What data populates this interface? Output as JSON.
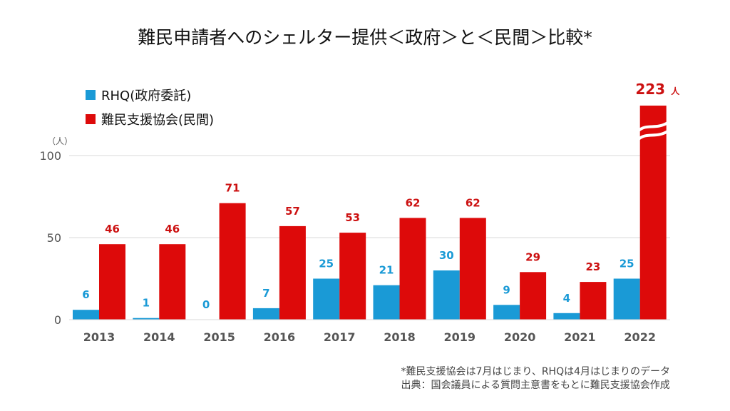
{
  "chart_data": {
    "type": "bar",
    "title": "難民申請者へのシェルター提供＜政府＞と＜民間＞比較*",
    "xlabel": "",
    "ylabel": "（人）",
    "ylim": [
      0,
      100
    ],
    "yticks": [
      0,
      50,
      100
    ],
    "grid": true,
    "legend_position": "top-left",
    "categories": [
      "2013",
      "2014",
      "2015",
      "2016",
      "2017",
      "2018",
      "2019",
      "2020",
      "2021",
      "2022"
    ],
    "series": [
      {
        "name": "RHQ(政府委託)",
        "color": "#1a9ad6",
        "values": [
          6,
          1,
          0,
          7,
          25,
          21,
          30,
          9,
          4,
          25
        ]
      },
      {
        "name": "難民支援協会(民間)",
        "color": "#dd0a0a",
        "values": [
          46,
          46,
          71,
          57,
          53,
          62,
          62,
          29,
          23,
          223
        ]
      }
    ],
    "annotations": {
      "broken_bar": {
        "category": "2022",
        "series": "難民支援協会(民間)",
        "label": "223",
        "unit": "人"
      }
    }
  },
  "notes": [
    "*難民支援協会は7月はじまり、RHQは4月はじまりのデータ",
    "出典：国会議員による質問主意書をもとに難民支援協会作成"
  ]
}
